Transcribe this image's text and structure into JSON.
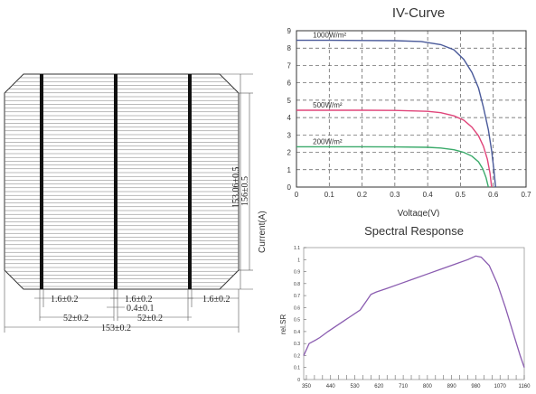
{
  "cell_drawing": {
    "tab_offset": "1.6±0.2",
    "busbar_width": "0.4±0.1",
    "busbar_pitch": "52±0.2",
    "overall_width": "153±0.2",
    "height_inner": "153.06±0.5",
    "height_outer": "156±0.5"
  },
  "chart_data": [
    {
      "type": "line",
      "title": "IV-Curve",
      "xlabel": "Voltage(V)",
      "ylabel": "Current(A)",
      "xlim": [
        0,
        0.7
      ],
      "ylim": [
        0,
        9
      ],
      "xticks": [
        "0",
        "0.1",
        "0.2",
        "0.3",
        "0.4",
        "0.5",
        "0.6",
        "0.7"
      ],
      "yticks": [
        "0",
        "1",
        "2",
        "3",
        "4",
        "5",
        "6",
        "7",
        "8",
        "9"
      ],
      "grid": "dashed",
      "series": [
        {
          "name": "1000W/m²",
          "color": "#4a5a9a",
          "x": [
            0,
            0.1,
            0.2,
            0.3,
            0.38,
            0.44,
            0.48,
            0.51,
            0.535,
            0.555,
            0.57,
            0.585,
            0.595,
            0.602,
            0.607
          ],
          "y": [
            8.45,
            8.45,
            8.44,
            8.43,
            8.38,
            8.2,
            7.9,
            7.35,
            6.6,
            5.7,
            4.6,
            3.3,
            2.1,
            1.0,
            0
          ]
        },
        {
          "name": "500W/m²",
          "color": "#e0457a",
          "x": [
            0,
            0.1,
            0.2,
            0.3,
            0.4,
            0.44,
            0.48,
            0.51,
            0.535,
            0.555,
            0.57,
            0.582,
            0.59,
            0.595
          ],
          "y": [
            4.42,
            4.42,
            4.42,
            4.41,
            4.36,
            4.28,
            4.1,
            3.85,
            3.45,
            2.95,
            2.35,
            1.6,
            0.8,
            0
          ]
        },
        {
          "name": "200W/m²",
          "color": "#3aaa6a",
          "x": [
            0,
            0.1,
            0.2,
            0.3,
            0.4,
            0.44,
            0.48,
            0.51,
            0.535,
            0.555,
            0.568,
            0.578,
            0.585
          ],
          "y": [
            2.32,
            2.32,
            2.32,
            2.31,
            2.29,
            2.25,
            2.15,
            2.0,
            1.78,
            1.45,
            1.05,
            0.55,
            0
          ]
        }
      ]
    },
    {
      "type": "line",
      "title": "Spectral Response",
      "xlabel": "",
      "ylabel": "rel.SR",
      "xlim": [
        340,
        1160
      ],
      "ylim": [
        0,
        1.1
      ],
      "xticks": [
        "350",
        "440",
        "530",
        "620",
        "710",
        "800",
        "890",
        "980",
        "1070",
        "1160"
      ],
      "yticks": [
        "0",
        "0.1",
        "0.2",
        "0.3",
        "0.4",
        "0.5",
        "0.6",
        "0.7",
        "0.8",
        "0.9",
        "1",
        "1.1"
      ],
      "grid": "none",
      "series": [
        {
          "color": "#8a5cb0",
          "x": [
            340,
            360,
            385,
            400,
            430,
            470,
            510,
            550,
            575,
            590,
            610,
            650,
            700,
            750,
            800,
            850,
            900,
            950,
            980,
            1000,
            1030,
            1060,
            1090,
            1120,
            1145,
            1160
          ],
          "y": [
            0.2,
            0.3,
            0.33,
            0.35,
            0.4,
            0.46,
            0.52,
            0.58,
            0.66,
            0.71,
            0.73,
            0.76,
            0.8,
            0.84,
            0.88,
            0.92,
            0.96,
            1.0,
            1.03,
            1.02,
            0.95,
            0.8,
            0.6,
            0.38,
            0.2,
            0.1
          ]
        }
      ]
    }
  ]
}
